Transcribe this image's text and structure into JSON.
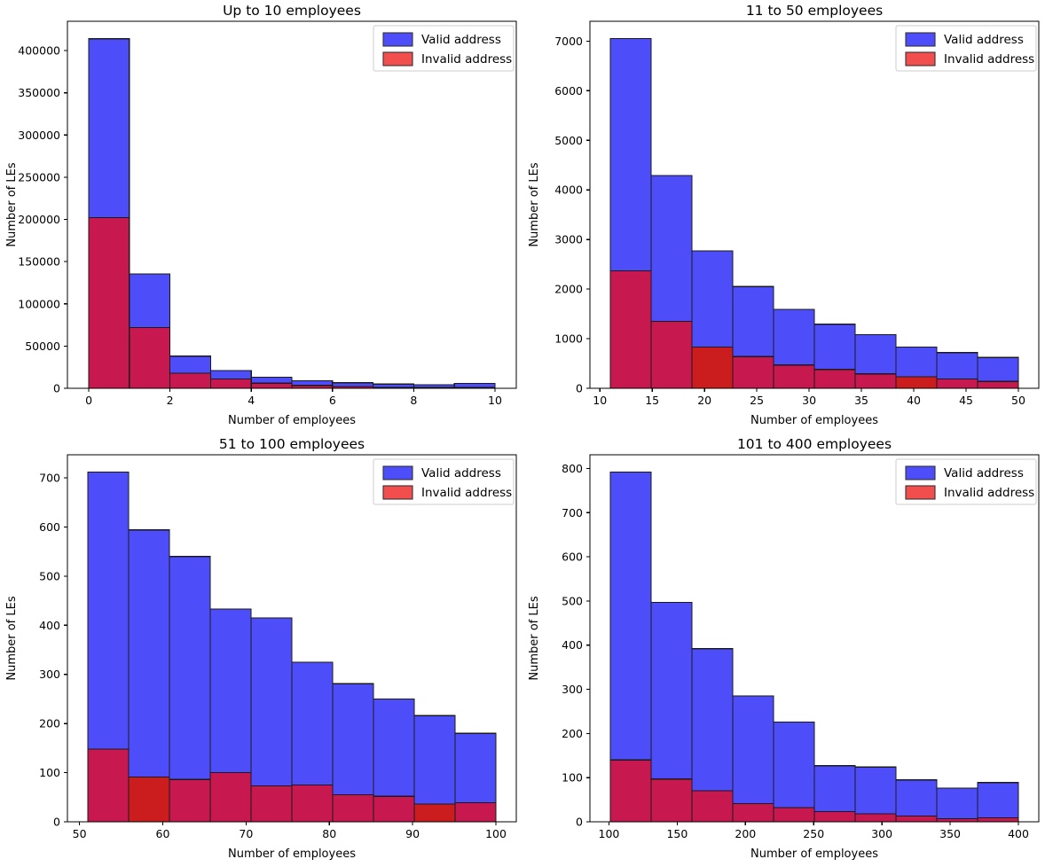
{
  "figure_title": "",
  "styles": {
    "background": "#ffffff",
    "valid_fill": "#4d4dfa",
    "invalid_fill": "#c7184f",
    "invalid_bright_fill": "#cb1d1d",
    "legend_valid_swatch": "#4d4dfa",
    "legend_invalid_swatch": "#f24e4e",
    "bar_edge": "#1a1a1a",
    "spine_color": "#000000",
    "text_color": "#000000",
    "legend_border": "#cccccc",
    "legend_bg": "#ffffff"
  },
  "chart_data": [
    {
      "type": "bar",
      "subtype": "overlaid-histogram",
      "title": "Up to 10 employees",
      "xlabel": "Number of employees",
      "ylabel": "Number of LEs",
      "grid": false,
      "legend": {
        "position": "upper right",
        "entries": [
          {
            "label": "Valid address",
            "color": "#4d4dfa"
          },
          {
            "label": "Invalid address",
            "color": "#f24e4e"
          }
        ]
      },
      "bin_edges": [
        0,
        1,
        2,
        3,
        4,
        5,
        6,
        7,
        8,
        9,
        10
      ],
      "series": [
        {
          "name": "Valid address",
          "values": [
            414000,
            135500,
            38000,
            21000,
            13000,
            9000,
            6500,
            5000,
            4200,
            5800
          ]
        },
        {
          "name": "Invalid address",
          "values": [
            202000,
            72000,
            18000,
            11000,
            6000,
            3500,
            2000,
            1200,
            900,
            700
          ]
        }
      ],
      "bright_invalid_bins": [],
      "xticks": [
        0,
        2,
        4,
        6,
        8,
        10
      ],
      "yticks": [
        0,
        50000,
        100000,
        150000,
        200000,
        250000,
        300000,
        350000,
        400000
      ],
      "xlim": [
        -0.525,
        10.525
      ],
      "ylim": [
        0,
        434700
      ]
    },
    {
      "type": "bar",
      "subtype": "overlaid-histogram",
      "title": "11 to 50 employees",
      "xlabel": "Number of employees",
      "ylabel": "Number of LEs",
      "grid": false,
      "legend": {
        "position": "upper right",
        "entries": [
          {
            "label": "Valid address",
            "color": "#4d4dfa"
          },
          {
            "label": "Invalid address",
            "color": "#f24e4e"
          }
        ]
      },
      "bin_edges": [
        11,
        14.9,
        18.8,
        22.7,
        26.6,
        30.5,
        34.4,
        38.3,
        42.2,
        46.1,
        50
      ],
      "series": [
        {
          "name": "Valid address",
          "values": [
            7050,
            4290,
            2770,
            2050,
            1590,
            1290,
            1080,
            830,
            720,
            620
          ]
        },
        {
          "name": "Invalid address",
          "values": [
            2370,
            1350,
            830,
            640,
            470,
            380,
            290,
            230,
            190,
            140
          ]
        }
      ],
      "bright_invalid_bins": [
        2,
        7
      ],
      "xticks": [
        10,
        15,
        20,
        25,
        30,
        35,
        40,
        45,
        50
      ],
      "yticks": [
        0,
        1000,
        2000,
        3000,
        4000,
        5000,
        6000,
        7000
      ],
      "xlim": [
        9.05,
        51.95
      ],
      "ylim": [
        0,
        7400
      ]
    },
    {
      "type": "bar",
      "subtype": "overlaid-histogram",
      "title": "51 to 100 employees",
      "xlabel": "Number of employees",
      "ylabel": "Number of LEs",
      "grid": false,
      "legend": {
        "position": "upper right",
        "entries": [
          {
            "label": "Valid address",
            "color": "#4d4dfa"
          },
          {
            "label": "Invalid address",
            "color": "#f24e4e"
          }
        ]
      },
      "bin_edges": [
        51,
        55.9,
        60.8,
        65.7,
        70.6,
        75.5,
        80.4,
        85.3,
        90.2,
        95.1,
        100
      ],
      "series": [
        {
          "name": "Valid address",
          "values": [
            712,
            594,
            540,
            433,
            415,
            325,
            281,
            250,
            216,
            180
          ]
        },
        {
          "name": "Invalid address",
          "values": [
            148,
            91,
            86,
            100,
            73,
            75,
            55,
            52,
            36,
            39
          ]
        }
      ],
      "bright_invalid_bins": [
        1,
        8
      ],
      "xticks": [
        50,
        60,
        70,
        80,
        90,
        100
      ],
      "yticks": [
        0,
        100,
        200,
        300,
        400,
        500,
        600,
        700
      ],
      "xlim": [
        48.55,
        102.45
      ],
      "ylim": [
        0,
        747
      ]
    },
    {
      "type": "bar",
      "subtype": "overlaid-histogram",
      "title": "101 to 400 employees",
      "xlabel": "Number of employees",
      "ylabel": "Number of LEs",
      "grid": false,
      "legend": {
        "position": "upper right",
        "entries": [
          {
            "label": "Valid address",
            "color": "#4d4dfa"
          },
          {
            "label": "Invalid address",
            "color": "#f24e4e"
          }
        ]
      },
      "bin_edges": [
        101,
        130.9,
        160.8,
        190.7,
        220.6,
        250.5,
        280.4,
        310.3,
        340.2,
        370.1,
        400
      ],
      "series": [
        {
          "name": "Valid address",
          "values": [
            792,
            497,
            392,
            285,
            226,
            127,
            124,
            95,
            76,
            89
          ]
        },
        {
          "name": "Invalid address",
          "values": [
            140,
            97,
            70,
            41,
            32,
            23,
            18,
            13,
            7,
            9
          ]
        }
      ],
      "bright_invalid_bins": [],
      "xticks": [
        100,
        150,
        200,
        250,
        300,
        350,
        400
      ],
      "yticks": [
        0,
        100,
        200,
        300,
        400,
        500,
        600,
        700,
        800
      ],
      "xlim": [
        86.05,
        414.95
      ],
      "ylim": [
        0,
        831
      ]
    }
  ]
}
